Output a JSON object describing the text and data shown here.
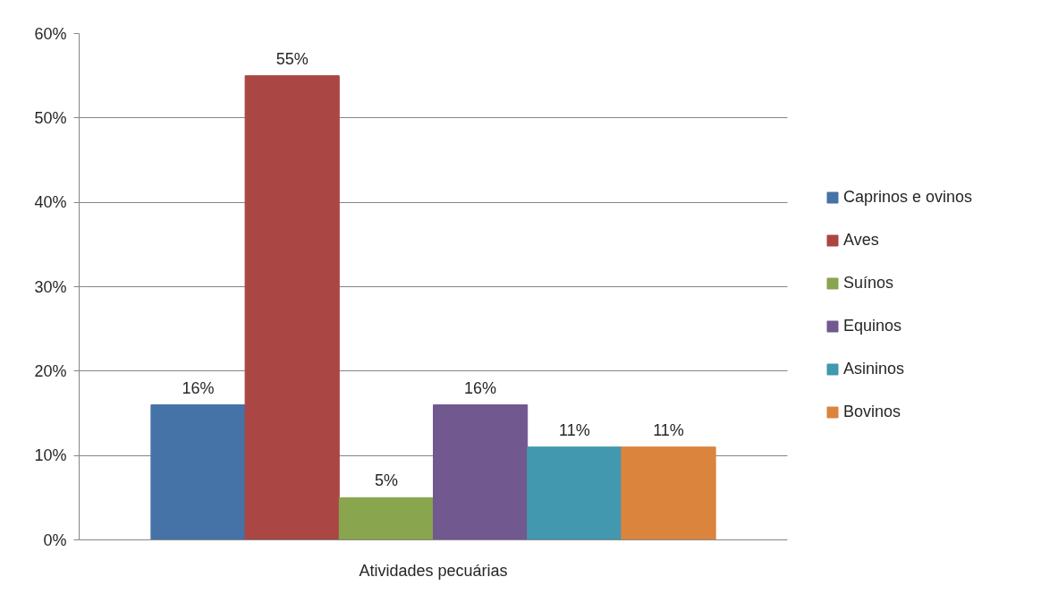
{
  "chart_data": {
    "type": "bar",
    "categories": [
      "Atividades pecuárias"
    ],
    "series": [
      {
        "name": "Caprinos e ovinos",
        "color": "#4572a7",
        "values": [
          16
        ],
        "value_labels": [
          "16%"
        ]
      },
      {
        "name": "Aves",
        "color": "#aa4643",
        "values": [
          55
        ],
        "value_labels": [
          "55%"
        ]
      },
      {
        "name": "Suínos",
        "color": "#89a54e",
        "values": [
          5
        ],
        "value_labels": [
          "5%"
        ]
      },
      {
        "name": "Equinos",
        "color": "#71588f",
        "values": [
          16
        ],
        "value_labels": [
          "16%"
        ]
      },
      {
        "name": "Asininos",
        "color": "#4198af",
        "values": [
          11
        ],
        "value_labels": [
          "11%"
        ]
      },
      {
        "name": "Bovinos",
        "color": "#db843d",
        "values": [
          11
        ],
        "value_labels": [
          "11%"
        ]
      }
    ],
    "ylim": [
      0,
      60
    ],
    "yticks": [
      {
        "value": 0,
        "label": "0%"
      },
      {
        "value": 10,
        "label": "10%"
      },
      {
        "value": 20,
        "label": "20%"
      },
      {
        "value": 30,
        "label": "30%"
      },
      {
        "value": 40,
        "label": "40%"
      },
      {
        "value": 50,
        "label": "50%"
      },
      {
        "value": 60,
        "label": "60%"
      }
    ],
    "grid": "y",
    "legend": "right"
  }
}
